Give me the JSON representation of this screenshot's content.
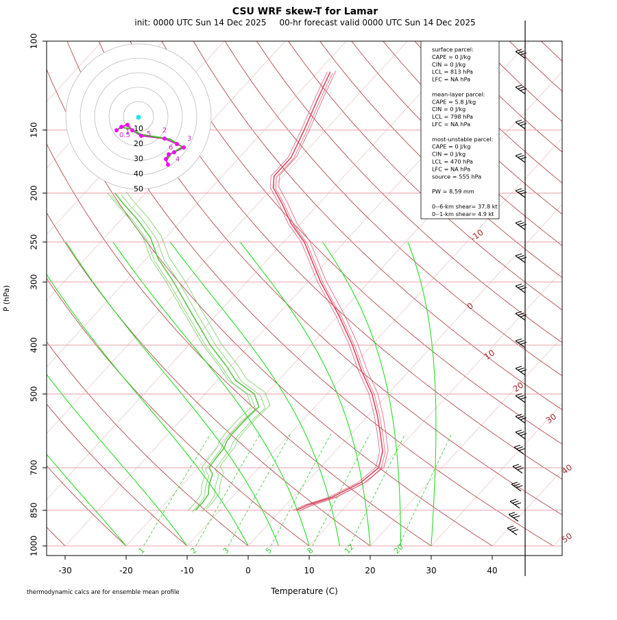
{
  "chart_data": {
    "type": "line",
    "title": "CSU WRF skew-T for Lamar",
    "subtitle": "init: 0000 UTC Sun 14 Dec 2025     00-hr forecast valid 0000 UTC Sun 14 Dec 2025",
    "xlabel": "Temperature (C)",
    "ylabel": "P (hPa)",
    "footnote": "thermodynamic calcs are for ensemble mean profile",
    "xlim": [
      -33,
      52
    ],
    "ylim": [
      1000,
      100
    ],
    "y_scale": "log",
    "skew": "skew-T (isotherms slanted)",
    "x_ticks": [
      -30,
      -20,
      -10,
      0,
      10,
      20,
      30,
      40
    ],
    "y_ticks": [
      100,
      150,
      200,
      250,
      300,
      400,
      500,
      700,
      850,
      1000
    ],
    "isotherm_labels": [
      "-10",
      "0",
      "10",
      "20",
      "30",
      "40",
      "50"
    ],
    "mixing_ratio_labels": [
      "1",
      "2",
      "3",
      "5",
      "8",
      "12",
      "20"
    ],
    "info_box": [
      "surface parcel:",
      "CAPE = 0 J/kg",
      "CIN = 0 J/kg",
      "LCL = 813 hPa",
      "LFC = NA hPa",
      "",
      "mean-layer parcel:",
      "CAPE = 5.8 J/kg",
      "CIN = 0 J/kg",
      "LCL = 798 hPa",
      "LFC = NA hPa",
      "",
      "most-unstable parcel:",
      "CAPE = 0 J/kg",
      "CIN = 0 J/kg",
      "LCL = 470 hPa",
      "LFC = NA hPa",
      "source = 555 hPa",
      "",
      "PW =  8.59 mm",
      "",
      "0--6-km shear= 37.8 kt",
      "0--1-km shear= 4.9 kt"
    ],
    "hodograph": {
      "ring_labels": [
        "10",
        "20",
        "30",
        "40",
        "50"
      ]
    },
    "series": [
      {
        "kind": "temperature",
        "color": "#d9455f",
        "points": [
          [
            850,
            2.5
          ],
          [
            830,
            3.6
          ],
          [
            800,
            6.4
          ],
          [
            750,
            8.9
          ],
          [
            700,
            9.6
          ],
          [
            650,
            7.8
          ],
          [
            600,
            4.8
          ],
          [
            550,
            1.4
          ],
          [
            500,
            -2.6
          ],
          [
            450,
            -7.8
          ],
          [
            400,
            -13.2
          ],
          [
            350,
            -19.8
          ],
          [
            300,
            -27.9
          ],
          [
            250,
            -36.6
          ],
          [
            230,
            -41.5
          ],
          [
            210,
            -46.0
          ],
          [
            195,
            -49.9
          ],
          [
            185,
            -51.5
          ],
          [
            170,
            -51.5
          ],
          [
            150,
            -53.5
          ],
          [
            130,
            -56.0
          ],
          [
            115,
            -58.0
          ]
        ]
      },
      {
        "kind": "dewpoint",
        "color": "#5ec44a",
        "points": [
          [
            850,
            -14.0
          ],
          [
            820,
            -14.0
          ],
          [
            790,
            -14.3
          ],
          [
            760,
            -15.5
          ],
          [
            720,
            -16.7
          ],
          [
            700,
            -18.2
          ],
          [
            670,
            -18.5
          ],
          [
            640,
            -18.7
          ],
          [
            620,
            -19.3
          ],
          [
            600,
            -19.5
          ],
          [
            560,
            -19.5
          ],
          [
            530,
            -19.2
          ],
          [
            500,
            -21.9
          ],
          [
            470,
            -27.0
          ],
          [
            440,
            -30.7
          ],
          [
            400,
            -36.5
          ],
          [
            370,
            -40.7
          ],
          [
            340,
            -45.3
          ],
          [
            300,
            -52.0
          ],
          [
            270,
            -58.0
          ],
          [
            245,
            -62.5
          ],
          [
            225,
            -67.5
          ],
          [
            210,
            -72.0
          ],
          [
            200,
            -75.0
          ]
        ]
      }
    ],
    "wind_barbs_note": "wind barbs along right-hand axis, 100 to 860 hPa",
    "colors": {
      "isotherm": "#a52a2a",
      "dry_adiabat": "#a52a2a",
      "moist_adiabat": "#22dd22",
      "mixing_ratio": "#44cc44",
      "isobar": "#e8a0a8",
      "temperature": "#d9455f",
      "dewpoint": "#5ec44a",
      "hodo_trace": "#cc22cc",
      "hodo_point": "#ff00ff",
      "storm_motion": "#22e5e5"
    }
  }
}
